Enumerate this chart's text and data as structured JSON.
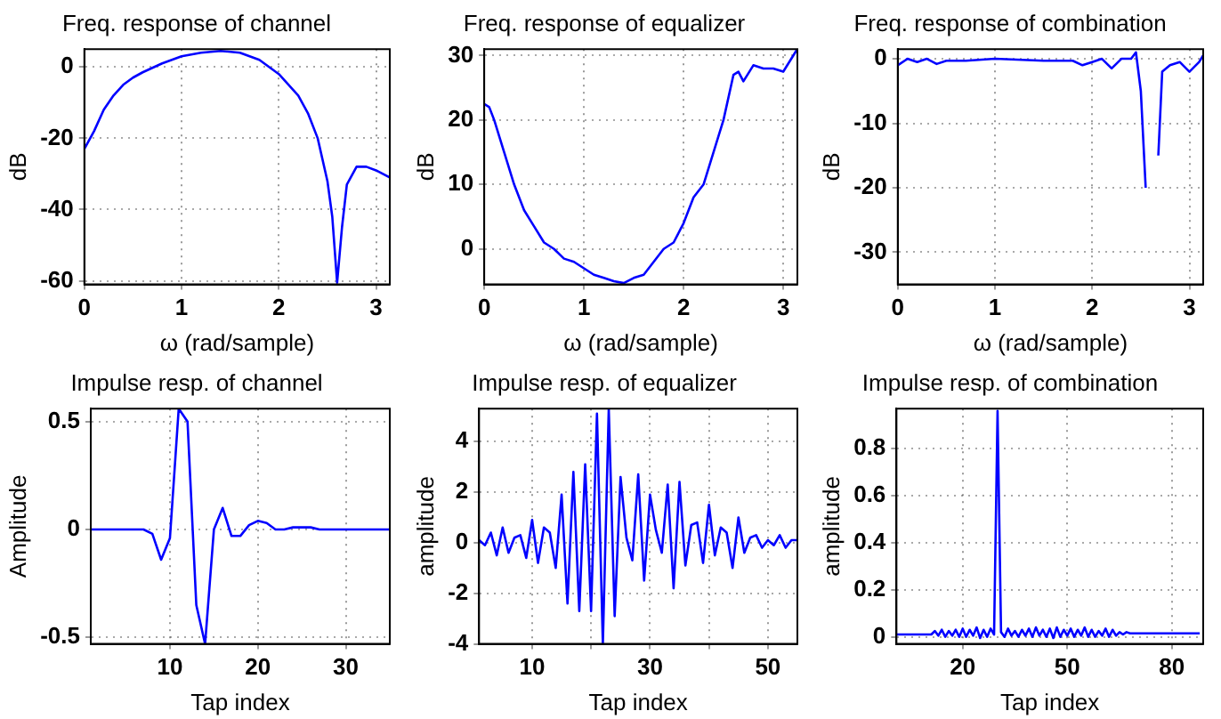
{
  "chart_data": [
    {
      "type": "line",
      "title": "Freq. response of channel",
      "xlabel": "ω (rad/sample)",
      "ylabel": "dB",
      "color": "#0000ff",
      "grid": true,
      "marker": "none",
      "line_style": "solid",
      "x": [
        0,
        0.1,
        0.2,
        0.3,
        0.4,
        0.5,
        0.6,
        0.8,
        1.0,
        1.2,
        1.4,
        1.6,
        1.8,
        2.0,
        2.2,
        2.3,
        2.4,
        2.5,
        2.55,
        2.6,
        2.65,
        2.7,
        2.8,
        2.9,
        3.0,
        3.14
      ],
      "values": [
        -23,
        -18,
        -12,
        -8,
        -5,
        -3,
        -1.5,
        1,
        3,
        4,
        4.5,
        4,
        2,
        -2,
        -8,
        -13,
        -20,
        -32,
        -42,
        -60.5,
        -45,
        -33,
        -28,
        -28,
        -29,
        -31
      ],
      "xlim": [
        0,
        3.1416
      ],
      "ylim": [
        -61,
        5
      ],
      "xticks": [
        0,
        1,
        2,
        3
      ],
      "yticks": [
        -60,
        -40,
        -20,
        0
      ]
    },
    {
      "type": "line",
      "title": "Freq. response of equalizer",
      "xlabel": "ω (rad/sample)",
      "ylabel": "dB",
      "color": "#0000ff",
      "grid": true,
      "marker": "none",
      "line_style": "solid",
      "x": [
        0,
        0.05,
        0.1,
        0.2,
        0.3,
        0.4,
        0.5,
        0.6,
        0.7,
        0.8,
        0.9,
        1.0,
        1.1,
        1.2,
        1.3,
        1.4,
        1.5,
        1.6,
        1.7,
        1.8,
        1.9,
        2.0,
        2.1,
        2.2,
        2.3,
        2.4,
        2.5,
        2.55,
        2.6,
        2.7,
        2.8,
        2.9,
        3.0,
        3.1,
        3.14
      ],
      "values": [
        22.5,
        22,
        20,
        15,
        10,
        6,
        3.5,
        1,
        0,
        -1.5,
        -2,
        -3,
        -4,
        -4.5,
        -5,
        -5.3,
        -4.5,
        -4,
        -2,
        0,
        1,
        4,
        8,
        10,
        15,
        20,
        27,
        27.5,
        26,
        28.5,
        28,
        28,
        27.5,
        30,
        31
      ],
      "xlim": [
        0,
        3.1416
      ],
      "ylim": [
        -5.5,
        31
      ],
      "xticks": [
        0,
        1,
        2,
        3
      ],
      "yticks": [
        0,
        10,
        20,
        30
      ]
    },
    {
      "type": "line",
      "title": "Freq. response of combination",
      "xlabel": "ω (rad/sample)",
      "ylabel": "dB",
      "color": "#0000ff",
      "grid": true,
      "marker": "none",
      "line_style": "solid",
      "x": [
        0,
        0.1,
        0.2,
        0.3,
        0.4,
        0.5,
        0.7,
        1.0,
        1.5,
        1.8,
        1.9,
        2.0,
        2.1,
        2.2,
        2.3,
        2.4,
        2.45,
        2.5,
        2.55,
        2.6,
        2.63,
        2.68,
        2.72,
        2.8,
        2.9,
        3.0,
        3.1,
        3.14
      ],
      "values": [
        -1,
        0,
        -0.5,
        0,
        -0.8,
        -0.3,
        -0.3,
        0,
        -0.3,
        -0.3,
        -1,
        -0.5,
        0,
        -1.5,
        0,
        0,
        1,
        -5,
        -20,
        null,
        null,
        -15,
        -2,
        -1,
        -0.5,
        -2,
        -0.5,
        0.5
      ],
      "xlim": [
        0,
        3.1416
      ],
      "ylim": [
        -35,
        1.5
      ],
      "xticks": [
        0,
        1,
        2,
        3
      ],
      "yticks": [
        -30,
        -20,
        -10,
        0
      ]
    },
    {
      "type": "line",
      "title": "Impulse resp. of channel",
      "xlabel": "Tap index",
      "ylabel": "Amplitude",
      "color": "#0000ff",
      "grid": true,
      "marker": "none",
      "line_style": "solid",
      "x": [
        1,
        2,
        3,
        4,
        5,
        6,
        7,
        8,
        9,
        10,
        11,
        12,
        13,
        14,
        15,
        16,
        17,
        18,
        19,
        20,
        21,
        22,
        23,
        24,
        25,
        26,
        27,
        28,
        29,
        30,
        31,
        32,
        33,
        34,
        35
      ],
      "values": [
        0,
        0,
        0,
        0,
        0,
        0,
        0,
        -0.02,
        -0.14,
        -0.04,
        0.56,
        0.5,
        -0.35,
        -0.53,
        0,
        0.1,
        -0.03,
        -0.03,
        0.02,
        0.04,
        0.03,
        0,
        0,
        0.01,
        0.01,
        0.01,
        0,
        0,
        0,
        0,
        0,
        0,
        0,
        0,
        0
      ],
      "xlim": [
        1,
        35
      ],
      "ylim": [
        -0.53,
        0.56
      ],
      "xticks": [
        10,
        20,
        30
      ],
      "yticks": [
        -0.5,
        0,
        0.5
      ]
    },
    {
      "type": "line",
      "title": "Impulse resp. of equalizer",
      "xlabel": "Tap index",
      "ylabel": "amplitude",
      "color": "#0000ff",
      "grid": true,
      "marker": "none",
      "line_style": "solid",
      "x": [
        1,
        2,
        3,
        4,
        5,
        6,
        7,
        8,
        9,
        10,
        11,
        12,
        13,
        14,
        15,
        16,
        17,
        18,
        19,
        20,
        21,
        22,
        23,
        24,
        25,
        26,
        27,
        28,
        29,
        30,
        31,
        32,
        33,
        34,
        35,
        36,
        37,
        38,
        39,
        40,
        41,
        42,
        43,
        44,
        45,
        46,
        47,
        48,
        49,
        50,
        51,
        52,
        53,
        54,
        55
      ],
      "values": [
        0.1,
        -0.1,
        0.4,
        -0.5,
        0.6,
        -0.4,
        0.2,
        0.3,
        -0.6,
        0.9,
        -0.8,
        0.6,
        0.4,
        -1.0,
        1.9,
        -2.4,
        2.8,
        -2.7,
        3.1,
        -2.7,
        5.1,
        -4.0,
        5.3,
        -2.9,
        2.6,
        0.2,
        -0.7,
        2.7,
        -1.5,
        1.9,
        0.5,
        -0.4,
        2.3,
        -1.8,
        2.4,
        -0.9,
        0.7,
        0.8,
        -0.8,
        1.5,
        -0.5,
        0.6,
        0.4,
        -1.0,
        1.0,
        -0.4,
        0.2,
        0.3,
        -0.2,
        0.1,
        -0.1,
        0.3,
        -0.2,
        0.1,
        0.1
      ],
      "xlim": [
        1,
        55
      ],
      "ylim": [
        -4,
        5.3
      ],
      "xticks": [
        10,
        {
          "value": 20,
          "label": null
        },
        30,
        {
          "value": 40,
          "label": null
        },
        50
      ],
      "yticks": [
        -4,
        -2,
        0,
        2,
        4
      ]
    },
    {
      "type": "line",
      "title": "Impulse resp. of combination",
      "xlabel": "Tap index",
      "ylabel": "amplitude",
      "color": "#0000ff",
      "grid": true,
      "marker": "none",
      "line_style": "solid",
      "x": [
        1,
        2,
        3,
        4,
        5,
        6,
        7,
        8,
        9,
        10,
        11,
        12,
        13,
        14,
        15,
        16,
        17,
        18,
        19,
        20,
        21,
        22,
        23,
        24,
        25,
        26,
        27,
        28,
        29,
        30,
        31,
        32,
        33,
        34,
        35,
        36,
        37,
        38,
        39,
        40,
        41,
        42,
        43,
        44,
        45,
        46,
        47,
        48,
        49,
        50,
        51,
        52,
        53,
        54,
        55,
        56,
        57,
        58,
        59,
        60,
        61,
        62,
        63,
        64,
        65,
        66,
        67,
        68,
        69,
        70,
        71,
        72,
        73,
        74,
        75,
        76,
        77,
        78,
        79,
        80,
        81,
        82,
        83,
        84,
        85,
        86,
        87,
        88
      ],
      "values": [
        0.01,
        0.01,
        0.01,
        0.01,
        0.01,
        0.01,
        0.01,
        0.01,
        0.01,
        0.01,
        0.01,
        0.025,
        0.005,
        0.03,
        0,
        0.025,
        0.005,
        0.03,
        0,
        0.035,
        0,
        0.03,
        0.005,
        0.04,
        -0.005,
        0.03,
        0,
        0.035,
        0.01,
        0.96,
        0.02,
        0,
        0.035,
        0.005,
        0.025,
        0,
        0.03,
        0.005,
        0.035,
        0,
        0.04,
        0.005,
        0.03,
        0,
        0.035,
        -0.005,
        0.04,
        0,
        0.03,
        0.005,
        0.035,
        0,
        0.03,
        0.005,
        0.04,
        0,
        0.03,
        0,
        0.025,
        0.005,
        0.035,
        0,
        0.03,
        0.005,
        0.02,
        0.01,
        0.02,
        0.015,
        0.015,
        0.015,
        0.015,
        0.015,
        0.015,
        0.015,
        0.015,
        0.015,
        0.015,
        0.015,
        0.015,
        0.015,
        0.015,
        0.015,
        0.015,
        0.015,
        0.015,
        0.015,
        0.015,
        0.015
      ],
      "xlim": [
        1,
        89
      ],
      "ylim": [
        -0.03,
        0.97
      ],
      "xticks": [
        20,
        50,
        80
      ],
      "yticks": [
        0,
        0.2,
        0.4,
        0.6,
        0.8
      ]
    }
  ]
}
